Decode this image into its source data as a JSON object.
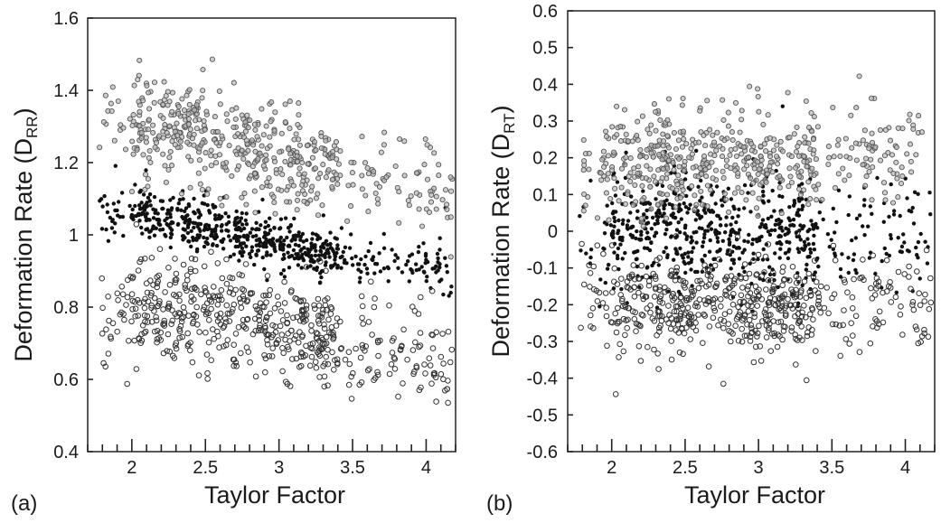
{
  "chart_data": [
    {
      "type": "scatter",
      "panel_label": "(a)",
      "xlabel": "Taylor Factor",
      "ylabel": "Deformation Rate (D",
      "ylabel_subscript": "RR",
      "ylabel_close": ")",
      "xlim": [
        1.7,
        4.2
      ],
      "ylim": [
        0.4,
        1.6
      ],
      "xticks": [
        2,
        2.5,
        3,
        3.5,
        4
      ],
      "xtick_labels": [
        "2",
        "2.5",
        "3",
        "3.5",
        "4"
      ],
      "yticks": [
        0.4,
        0.6,
        0.8,
        1.0,
        1.2,
        1.4,
        1.6
      ],
      "ytick_labels": [
        "0.4",
        "0.6",
        "0.8",
        "1",
        "1.2",
        "1.4",
        "1.6"
      ],
      "grid": false,
      "series": [
        {
          "marker": "filled-dot",
          "color": "#111111",
          "trend": [
            [
              1.8,
              1.06
            ],
            [
              2.0,
              1.06
            ],
            [
              2.5,
              1.03
            ],
            [
              3.0,
              0.97
            ],
            [
              3.5,
              0.93
            ],
            [
              4.0,
              0.92
            ],
            [
              4.2,
              0.91
            ]
          ],
          "spread": 0.035
        },
        {
          "marker": "open-circle-gray",
          "color": "#555555",
          "trend": [
            [
              1.8,
              1.28
            ],
            [
              2.0,
              1.3
            ],
            [
              2.5,
              1.27
            ],
            [
              3.0,
              1.21
            ],
            [
              3.5,
              1.18
            ],
            [
              4.0,
              1.14
            ],
            [
              4.2,
              1.1
            ]
          ],
          "spread": 0.07
        },
        {
          "marker": "open-circle",
          "color": "#333333",
          "trend": [
            [
              1.8,
              0.76
            ],
            [
              2.0,
              0.8
            ],
            [
              2.5,
              0.79
            ],
            [
              3.0,
              0.74
            ],
            [
              3.5,
              0.7
            ],
            [
              4.0,
              0.66
            ],
            [
              4.2,
              0.65
            ]
          ],
          "spread": 0.07
        }
      ]
    },
    {
      "type": "scatter",
      "panel_label": "(b)",
      "xlabel": "Taylor Factor",
      "ylabel": "Deformation Rate (D",
      "ylabel_subscript": "RT",
      "ylabel_close": ")",
      "xlim": [
        1.7,
        4.2
      ],
      "ylim": [
        -0.6,
        0.6
      ],
      "xticks": [
        2,
        2.5,
        3,
        3.5,
        4
      ],
      "xtick_labels": [
        "2",
        "2.5",
        "3",
        "3.5",
        "4"
      ],
      "yticks": [
        -0.6,
        -0.5,
        -0.4,
        -0.3,
        -0.2,
        -0.1,
        0,
        0.1,
        0.2,
        0.3,
        0.4,
        0.5,
        0.6
      ],
      "ytick_labels": [
        "-0.6",
        "-0.5",
        "-0.4",
        "-0.3",
        "-0.2",
        "-0.1",
        "0",
        "0.1",
        "0.2",
        "0.3",
        "0.4",
        "0.5",
        "0.6"
      ],
      "grid": false,
      "series": [
        {
          "marker": "filled-dot",
          "color": "#111111",
          "trend": [
            [
              1.8,
              0.0
            ],
            [
              2.5,
              0.01
            ],
            [
              3.0,
              0.0
            ],
            [
              3.5,
              0.0
            ],
            [
              4.2,
              0.0
            ]
          ],
          "spread": 0.08
        },
        {
          "marker": "open-circle-gray",
          "color": "#555555",
          "trend": [
            [
              1.8,
              0.16
            ],
            [
              2.5,
              0.2
            ],
            [
              3.0,
              0.19
            ],
            [
              3.5,
              0.21
            ],
            [
              4.2,
              0.2
            ]
          ],
          "spread": 0.07
        },
        {
          "marker": "open-circle",
          "color": "#333333",
          "trend": [
            [
              1.8,
              -0.18
            ],
            [
              2.5,
              -0.2
            ],
            [
              3.0,
              -0.2
            ],
            [
              3.5,
              -0.2
            ],
            [
              4.2,
              -0.19
            ]
          ],
          "spread": 0.07
        }
      ]
    }
  ]
}
